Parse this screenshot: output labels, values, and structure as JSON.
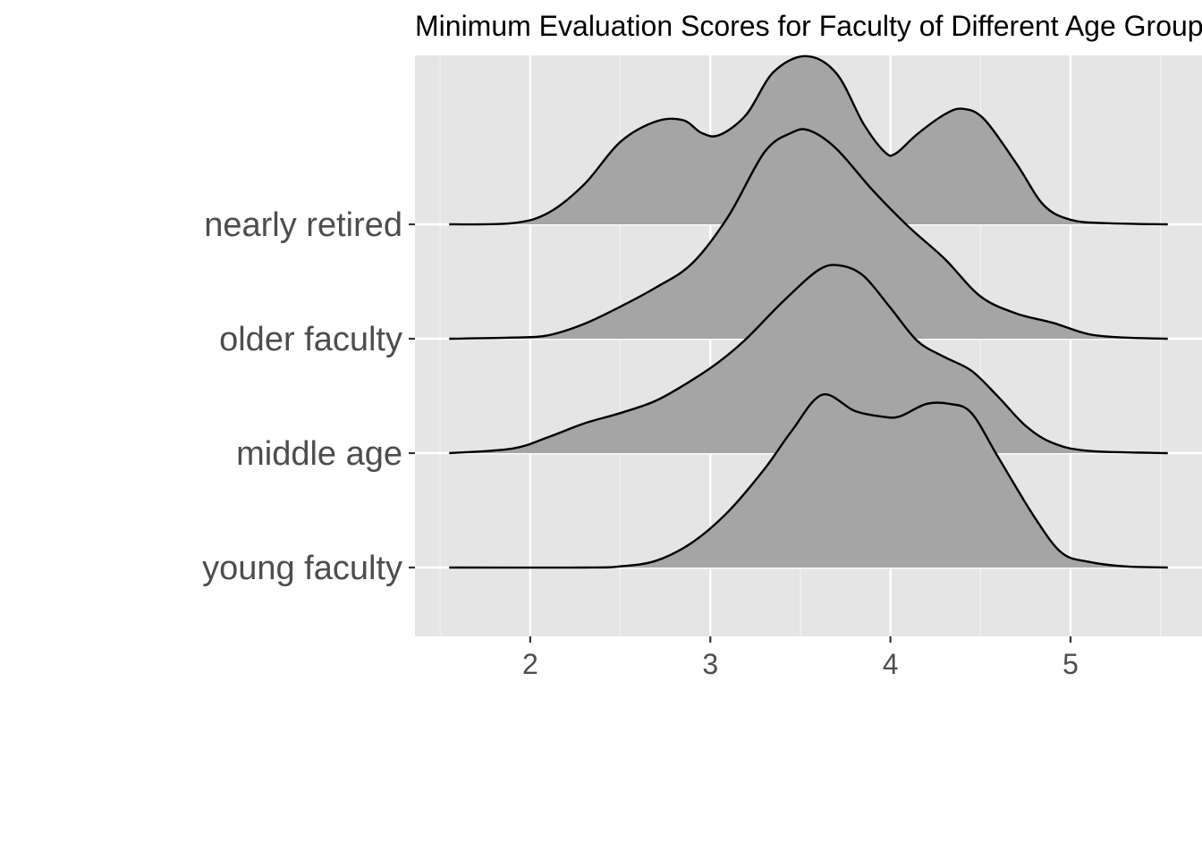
{
  "chart_data": {
    "type": "ridgeline",
    "title": "Minimum Evaluation Scores for Faculty of Different Age Groups",
    "xlabel": "",
    "ylabel": "",
    "xlim": [
      1.36,
      5.73
    ],
    "x_ticks": [
      2,
      3,
      4,
      5
    ],
    "x_minor_ticks": [
      1.5,
      2.5,
      3.5,
      4.5,
      5.5
    ],
    "x_range_drawn": [
      1.55,
      5.54
    ],
    "grid": true,
    "categories": [
      "young faculty",
      "middle age",
      "older faculty",
      "nearly retired"
    ],
    "density_scale_note": "heights in units of one category row spacing",
    "series": [
      {
        "name": "young faculty",
        "points": [
          [
            1.55,
            0
          ],
          [
            2.3,
            0
          ],
          [
            2.5,
            0.01
          ],
          [
            2.7,
            0.06
          ],
          [
            2.9,
            0.22
          ],
          [
            3.1,
            0.49
          ],
          [
            3.3,
            0.86
          ],
          [
            3.45,
            1.19
          ],
          [
            3.62,
            1.51
          ],
          [
            3.8,
            1.37
          ],
          [
            3.95,
            1.32
          ],
          [
            4.05,
            1.32
          ],
          [
            4.2,
            1.43
          ],
          [
            4.33,
            1.43
          ],
          [
            4.45,
            1.35
          ],
          [
            4.6,
            0.96
          ],
          [
            4.8,
            0.44
          ],
          [
            4.95,
            0.13
          ],
          [
            5.1,
            0.05
          ],
          [
            5.3,
            0.01
          ],
          [
            5.54,
            0
          ]
        ]
      },
      {
        "name": "middle age",
        "points": [
          [
            1.55,
            0
          ],
          [
            1.9,
            0.04
          ],
          [
            2.1,
            0.14
          ],
          [
            2.3,
            0.26
          ],
          [
            2.5,
            0.35
          ],
          [
            2.7,
            0.46
          ],
          [
            2.9,
            0.64
          ],
          [
            3.05,
            0.8
          ],
          [
            3.2,
            1.0
          ],
          [
            3.4,
            1.32
          ],
          [
            3.6,
            1.6
          ],
          [
            3.72,
            1.64
          ],
          [
            3.85,
            1.55
          ],
          [
            4.0,
            1.27
          ],
          [
            4.15,
            0.98
          ],
          [
            4.3,
            0.84
          ],
          [
            4.45,
            0.72
          ],
          [
            4.6,
            0.49
          ],
          [
            4.75,
            0.24
          ],
          [
            4.9,
            0.09
          ],
          [
            5.1,
            0.02
          ],
          [
            5.54,
            0
          ]
        ]
      },
      {
        "name": "older faculty",
        "points": [
          [
            1.55,
            0
          ],
          [
            1.9,
            0.01
          ],
          [
            2.1,
            0.03
          ],
          [
            2.3,
            0.13
          ],
          [
            2.5,
            0.28
          ],
          [
            2.7,
            0.45
          ],
          [
            2.9,
            0.66
          ],
          [
            3.1,
            1.07
          ],
          [
            3.3,
            1.63
          ],
          [
            3.45,
            1.8
          ],
          [
            3.55,
            1.82
          ],
          [
            3.7,
            1.66
          ],
          [
            3.9,
            1.3
          ],
          [
            4.1,
            0.98
          ],
          [
            4.3,
            0.7
          ],
          [
            4.5,
            0.37
          ],
          [
            4.7,
            0.22
          ],
          [
            4.9,
            0.14
          ],
          [
            5.1,
            0.04
          ],
          [
            5.3,
            0.01
          ],
          [
            5.54,
            0
          ]
        ]
      },
      {
        "name": "nearly retired",
        "points": [
          [
            1.55,
            0
          ],
          [
            1.9,
            0.01
          ],
          [
            2.1,
            0.1
          ],
          [
            2.3,
            0.35
          ],
          [
            2.5,
            0.72
          ],
          [
            2.7,
            0.9
          ],
          [
            2.85,
            0.91
          ],
          [
            2.95,
            0.8
          ],
          [
            3.05,
            0.78
          ],
          [
            3.2,
            0.96
          ],
          [
            3.35,
            1.33
          ],
          [
            3.53,
            1.47
          ],
          [
            3.7,
            1.32
          ],
          [
            3.85,
            0.88
          ],
          [
            3.97,
            0.63
          ],
          [
            4.03,
            0.62
          ],
          [
            4.15,
            0.79
          ],
          [
            4.3,
            0.96
          ],
          [
            4.4,
            1.01
          ],
          [
            4.52,
            0.92
          ],
          [
            4.7,
            0.53
          ],
          [
            4.85,
            0.17
          ],
          [
            5.0,
            0.04
          ],
          [
            5.2,
            0.01
          ],
          [
            5.54,
            0
          ]
        ]
      }
    ],
    "colors": {
      "panel_background": "#e5e5e5",
      "grid_major": "#ffffff",
      "grid_minor": "#f2f2f2",
      "ridge_fill": "#a5a5a5",
      "ridge_line": "#000000",
      "axis_text": "#4d4d4d",
      "title_text": "#000000"
    }
  }
}
